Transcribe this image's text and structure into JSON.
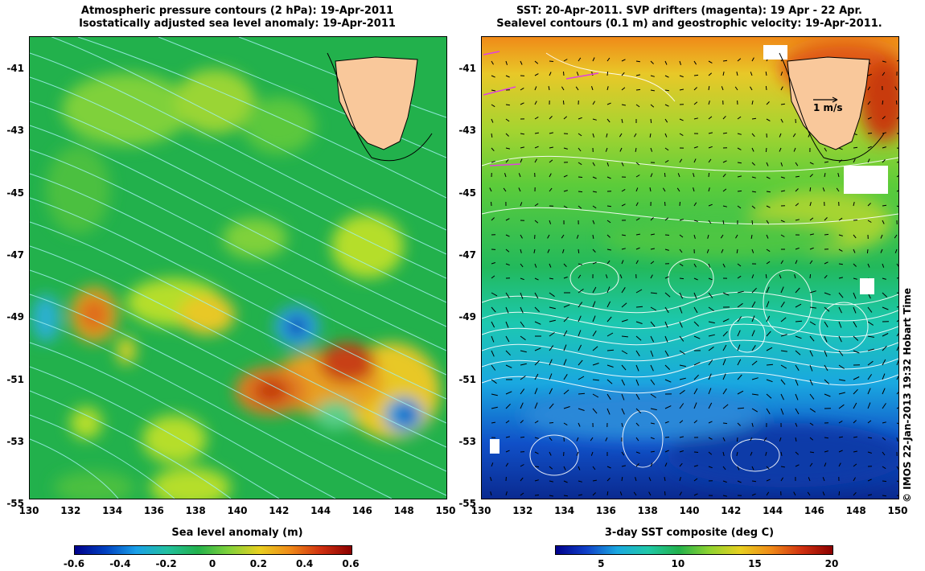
{
  "left_panel": {
    "title_line1": "Atmospheric pressure contours (2 hPa): 19-Apr-2011",
    "title_line2": "Isostatically adjusted sea level anomaly: 19-Apr-2011",
    "colorbar_label": "Sea level anomaly (m)",
    "colorbar_ticks": [
      "-0.6",
      "-0.4",
      "-0.2",
      "0",
      "0.2",
      "0.4",
      "0.6"
    ],
    "colors": {
      "low": "#00008b",
      "mid": "#22b14c",
      "high": "#8b0000"
    }
  },
  "right_panel": {
    "title_line1": "SST: 20-Apr-2011. SVP drifters (magenta): 19 Apr - 22 Apr.",
    "title_line2": "Sealevel contours (0.1 m) and geostrophic velocity: 19-Apr-2011.",
    "colorbar_label": "3-day SST composite (deg C)",
    "colorbar_ticks": [
      "5",
      "10",
      "15",
      "20"
    ],
    "scale_arrow_label": "1 m/s"
  },
  "axes": {
    "y_ticks": [
      "-41",
      "-43",
      "-45",
      "-47",
      "-49",
      "-51",
      "-53",
      "-55"
    ],
    "x_ticks": [
      "130",
      "132",
      "134",
      "136",
      "138",
      "140",
      "142",
      "144",
      "146",
      "148",
      "150"
    ]
  },
  "credit": "© IMOS 22-Jan-2013 19:32 Hobart Time",
  "land_label_color": "#f9c89b"
}
